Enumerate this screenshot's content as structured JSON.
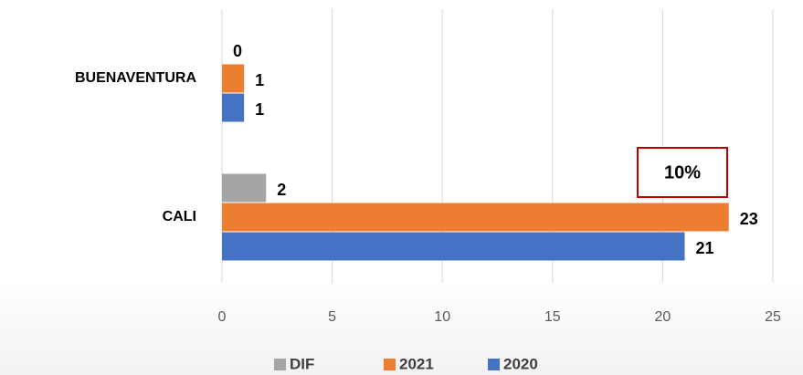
{
  "chart_data": {
    "type": "bar",
    "orientation": "horizontal",
    "categories": [
      "BUENAVENTURA",
      "CALI"
    ],
    "series": [
      {
        "name": "DIF",
        "color": "#a5a5a5",
        "values": [
          0,
          2
        ]
      },
      {
        "name": "2021",
        "color": "#ed7d31",
        "values": [
          1,
          23
        ]
      },
      {
        "name": "2020",
        "color": "#4472c4",
        "values": [
          1,
          21
        ]
      }
    ],
    "xlim": [
      0,
      25
    ],
    "xticks": [
      0,
      5,
      10,
      15,
      20,
      25
    ],
    "grid": true,
    "annotation": "10%"
  }
}
